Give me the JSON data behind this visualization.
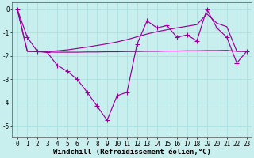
{
  "background_color": "#c8eeee",
  "line_color": "#990099",
  "xlabel": "Windchill (Refroidissement éolien,°C)",
  "ylim": [
    -5.5,
    0.3
  ],
  "xlim": [
    -0.5,
    23.5
  ],
  "yticks": [
    0,
    -1,
    -2,
    -3,
    -4,
    -5
  ],
  "series_main": [
    0.0,
    -1.2,
    -1.8,
    -1.85,
    -2.4,
    -2.65,
    -3.0,
    -3.55,
    -4.15,
    -4.75,
    -3.7,
    -3.55,
    -1.5,
    -0.5,
    -0.8,
    -0.7,
    -1.2,
    -1.1,
    -1.35,
    0.0,
    -0.8,
    -1.2,
    -2.3,
    -1.8
  ],
  "series_flat": [
    0.0,
    -1.8,
    -1.82,
    -1.83,
    -1.84,
    -1.84,
    -1.84,
    -1.83,
    -1.83,
    -1.82,
    -1.82,
    -1.81,
    -1.81,
    -1.8,
    -1.8,
    -1.79,
    -1.79,
    -1.78,
    -1.78,
    -1.77,
    -1.77,
    -1.76,
    -1.8,
    -1.8
  ],
  "series_rising": [
    0.0,
    -1.8,
    -1.82,
    -1.81,
    -1.78,
    -1.74,
    -1.68,
    -1.62,
    -1.55,
    -1.48,
    -1.4,
    -1.3,
    -1.18,
    -1.06,
    -0.96,
    -0.88,
    -0.8,
    -0.73,
    -0.66,
    -0.2,
    -0.6,
    -0.75,
    -1.8,
    -1.8
  ],
  "tick_fontsize": 5.5,
  "xlabel_fontsize": 6.5,
  "grid_color": "#a8dede",
  "marker": "+",
  "markersize": 4.0,
  "linewidth": 0.85
}
